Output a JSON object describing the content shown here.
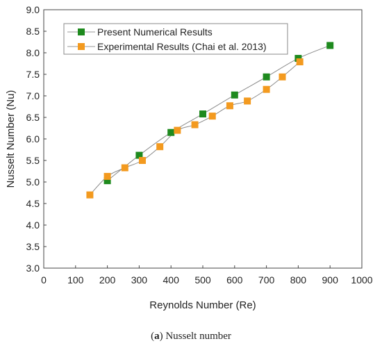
{
  "chart_data": {
    "type": "line",
    "xlabel": "Reynolds Number (Re)",
    "ylabel": "Nusselt Number (Nu)",
    "xlim": [
      0,
      1000
    ],
    "ylim": [
      3.0,
      9.0
    ],
    "xticks": [
      "0",
      "100",
      "200",
      "300",
      "400",
      "500",
      "600",
      "700",
      "800",
      "900",
      "1000"
    ],
    "yticks": [
      "3.0",
      "3.5",
      "4.0",
      "4.5",
      "5.0",
      "5.5",
      "6.0",
      "6.5",
      "7.0",
      "7.5",
      "8.0",
      "8.5",
      "9.0"
    ],
    "grid": false,
    "legend_position": "top-left",
    "series": [
      {
        "name": "Present Numerical Results",
        "color": "#1e8a1e",
        "x": [
          200,
          300,
          400,
          500,
          600,
          700,
          800,
          900
        ],
        "y": [
          5.03,
          5.62,
          6.15,
          6.58,
          7.02,
          7.44,
          7.87,
          8.17
        ]
      },
      {
        "name": "Experimental Results (Chai et al. 2013)",
        "color": "#f39a1f",
        "x": [
          145,
          200,
          255,
          310,
          365,
          420,
          475,
          530,
          585,
          640,
          700,
          750,
          805
        ],
        "y": [
          4.7,
          5.13,
          5.33,
          5.5,
          5.82,
          6.2,
          6.33,
          6.53,
          6.77,
          6.88,
          7.15,
          7.44,
          7.79
        ]
      }
    ]
  },
  "caption": {
    "label": "a",
    "text": " Nusselt number"
  }
}
